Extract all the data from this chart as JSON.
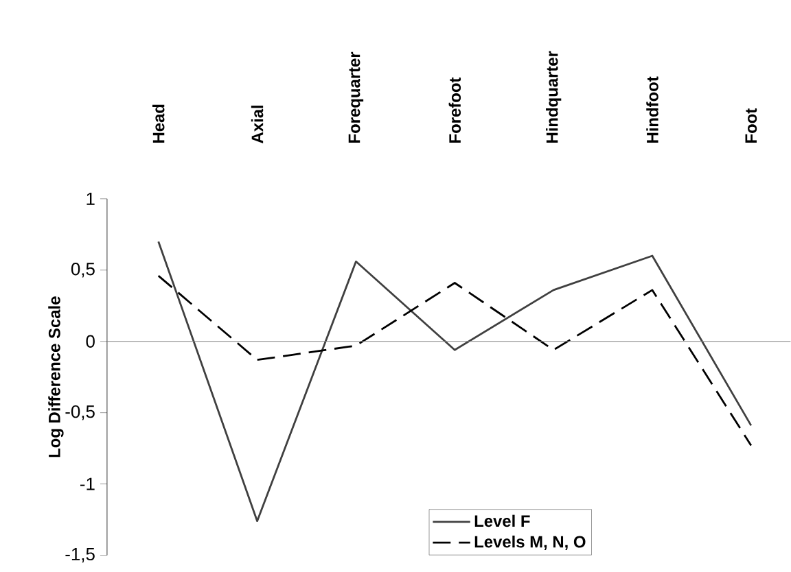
{
  "chart_data": {
    "type": "line",
    "categories": [
      "Head",
      "Axial",
      "Forequarter",
      "Forefoot",
      "Hindquarter",
      "Hindfoot",
      "Foot"
    ],
    "ylabel": "Log Difference Scale",
    "ylim": [
      -1.5,
      1
    ],
    "yticks": [
      {
        "value": -1.5,
        "label": "-1,5"
      },
      {
        "value": -1,
        "label": "-1"
      },
      {
        "value": -0.5,
        "label": "-0,5"
      },
      0,
      {
        "value": 0.5,
        "label": "0,5"
      },
      1
    ],
    "series": [
      {
        "name": "Level F",
        "color": "#404040",
        "line_style": "solid",
        "values": [
          0.7,
          -1.26,
          0.56,
          -0.06,
          0.36,
          0.6,
          -0.59
        ]
      },
      {
        "name": "Levels M, N, O",
        "color": "#000000",
        "line_style": "dashed",
        "values": [
          0.46,
          -0.13,
          -0.03,
          0.41,
          -0.06,
          0.36,
          -0.73
        ]
      }
    ],
    "legend": "bottom",
    "marker": "none"
  }
}
